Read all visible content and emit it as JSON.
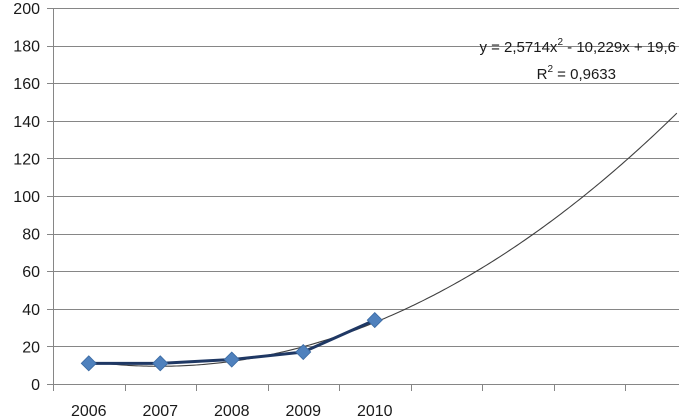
{
  "chart_data": {
    "type": "line",
    "title": "",
    "xlabel": "",
    "ylabel": "",
    "categories": [
      "2006",
      "2007",
      "2008",
      "2009",
      "2010"
    ],
    "x": [
      1,
      2,
      3,
      4,
      5
    ],
    "series": [
      {
        "values": [
          11,
          11,
          13,
          17,
          34
        ],
        "color": "#4f81bd",
        "marker": "diamond"
      }
    ],
    "trendline": {
      "type": "polynomial",
      "order": 2,
      "coefficients": {
        "a": 2.5714,
        "b": -10.229,
        "c": 19.6
      },
      "x_range": [
        1,
        9.4
      ],
      "equation": {
        "prefix": "y = 2,5714x",
        "exp": "2",
        "rest": " - 10,229x + 19,6"
      },
      "r_squared": {
        "prefix": "R",
        "exp": "2",
        "rest": " = 0,9633"
      },
      "color": "#404040"
    },
    "ylim": [
      0,
      200
    ],
    "y_ticks": [
      "0",
      "20",
      "40",
      "60",
      "80",
      "100",
      "120",
      "140",
      "160",
      "180",
      "200"
    ],
    "grid": true,
    "legend": "none",
    "colors": {
      "series": "#4f81bd",
      "series_line": "#1f3864",
      "grid": "#868686",
      "axis": "#868686"
    }
  }
}
